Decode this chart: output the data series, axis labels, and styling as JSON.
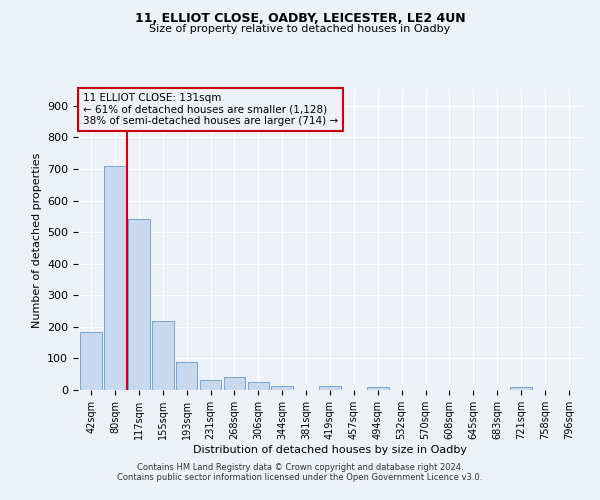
{
  "title1": "11, ELLIOT CLOSE, OADBY, LEICESTER, LE2 4UN",
  "title2": "Size of property relative to detached houses in Oadby",
  "xlabel": "Distribution of detached houses by size in Oadby",
  "ylabel": "Number of detached properties",
  "bar_labels": [
    "42sqm",
    "80sqm",
    "117sqm",
    "155sqm",
    "193sqm",
    "231sqm",
    "268sqm",
    "306sqm",
    "344sqm",
    "381sqm",
    "419sqm",
    "457sqm",
    "494sqm",
    "532sqm",
    "570sqm",
    "608sqm",
    "645sqm",
    "683sqm",
    "721sqm",
    "758sqm",
    "796sqm"
  ],
  "bar_values": [
    185,
    710,
    540,
    220,
    88,
    33,
    40,
    26,
    13,
    0,
    13,
    0,
    10,
    0,
    0,
    0,
    0,
    0,
    8,
    0,
    0
  ],
  "bar_color": "#c9d9ed",
  "bar_edge_color": "#6699cc",
  "vline_x_index": 2,
  "vline_color": "#cc0000",
  "annotation_title": "11 ELLIOT CLOSE: 131sqm",
  "annotation_line1": "← 61% of detached houses are smaller (1,128)",
  "annotation_line2": "38% of semi-detached houses are larger (714) →",
  "annotation_box_color": "#cc0000",
  "ylim": [
    0,
    950
  ],
  "yticks": [
    0,
    100,
    200,
    300,
    400,
    500,
    600,
    700,
    800,
    900
  ],
  "footer1": "Contains HM Land Registry data © Crown copyright and database right 2024.",
  "footer2": "Contains public sector information licensed under the Open Government Licence v3.0.",
  "bg_color": "#edf2f9",
  "grid_color": "#ffffff"
}
